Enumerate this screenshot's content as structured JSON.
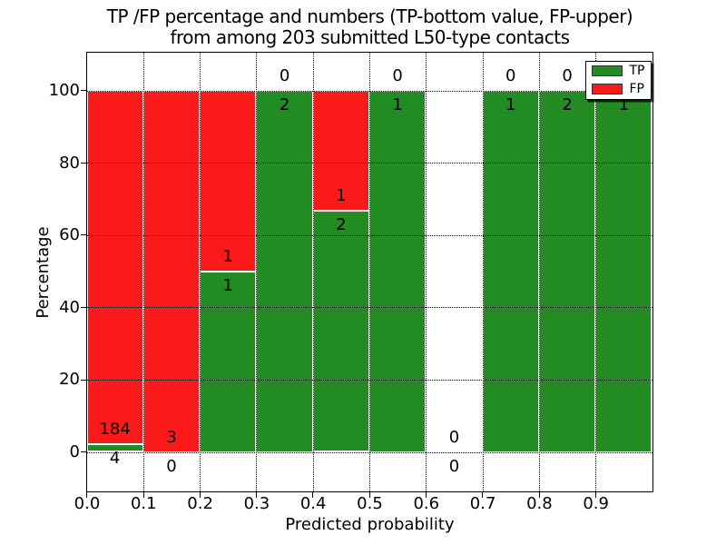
{
  "figure": {
    "title_line1": "TP /FP percentage and numbers (TP-bottom value, FP-upper)",
    "title_line2": "from among 203 submitted L50-type contacts",
    "xlabel": "Predicted probability",
    "ylabel": "Percentage"
  },
  "colors": {
    "tp": "#228b22",
    "fp": "#fa1a1a",
    "bar_edge": "#ffffff",
    "grid": "#000000",
    "background": "#ffffff"
  },
  "legend": {
    "items": [
      {
        "label": "TP",
        "color_key": "tp"
      },
      {
        "label": "FP",
        "color_key": "fp"
      }
    ]
  },
  "chart_data": {
    "type": "bar",
    "stacked": true,
    "title": "TP /FP percentage and numbers (TP-bottom value, FP-upper) from among 203 submitted L50-type contacts",
    "xlabel": "Predicted probability",
    "ylabel": "Percentage",
    "total_contacts": 203,
    "bin_edges": [
      0.0,
      0.1,
      0.2,
      0.3,
      0.4,
      0.5,
      0.6,
      0.7,
      0.8,
      0.9,
      1.0
    ],
    "categories": [
      "0.0-0.1",
      "0.1-0.2",
      "0.2-0.3",
      "0.3-0.4",
      "0.4-0.5",
      "0.5-0.6",
      "0.6-0.7",
      "0.7-0.8",
      "0.8-0.9",
      "0.9-1.0"
    ],
    "series": [
      {
        "name": "TP",
        "counts": [
          4,
          0,
          1,
          2,
          2,
          1,
          0,
          1,
          2,
          1
        ]
      },
      {
        "name": "FP",
        "counts": [
          184,
          3,
          1,
          0,
          1,
          0,
          0,
          0,
          0,
          0
        ]
      }
    ],
    "bar_heights_percent_of_bin": true,
    "x_ticks": [
      "0.0",
      "0.1",
      "0.2",
      "0.3",
      "0.4",
      "0.5",
      "0.6",
      "0.7",
      "0.8",
      "0.9"
    ],
    "y_ticks": [
      0,
      20,
      40,
      60,
      80,
      100
    ],
    "xlim": [
      0,
      1
    ],
    "ylim": [
      -11,
      110.5
    ],
    "grid": true,
    "legend_position": "upper right"
  }
}
